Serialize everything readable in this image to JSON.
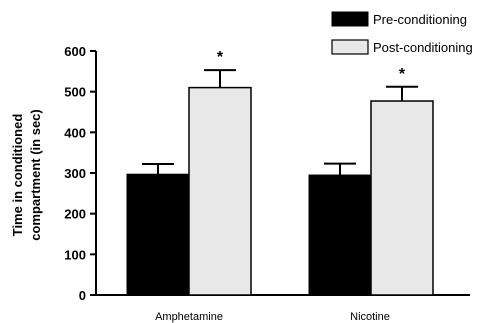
{
  "chart_data": {
    "type": "bar",
    "categories": [
      "Amphetamine",
      "Nicotine"
    ],
    "series": [
      {
        "name": "Pre-conditioning",
        "values": [
          297,
          295
        ],
        "errors": [
          25,
          28
        ],
        "color": "#000000"
      },
      {
        "name": "Post-conditioning",
        "values": [
          510,
          477
        ],
        "errors": [
          43,
          35
        ],
        "color": "#e8e8e8"
      }
    ],
    "annotations": [
      "*",
      "*"
    ],
    "ylabel_lines": [
      "Time in conditioned",
      "compartment (in sec)"
    ],
    "ylim": [
      0,
      600
    ],
    "yticks": [
      "0",
      "100",
      "200",
      "300",
      "400",
      "500",
      "600"
    ],
    "grid": false,
    "legend": "top-right"
  }
}
